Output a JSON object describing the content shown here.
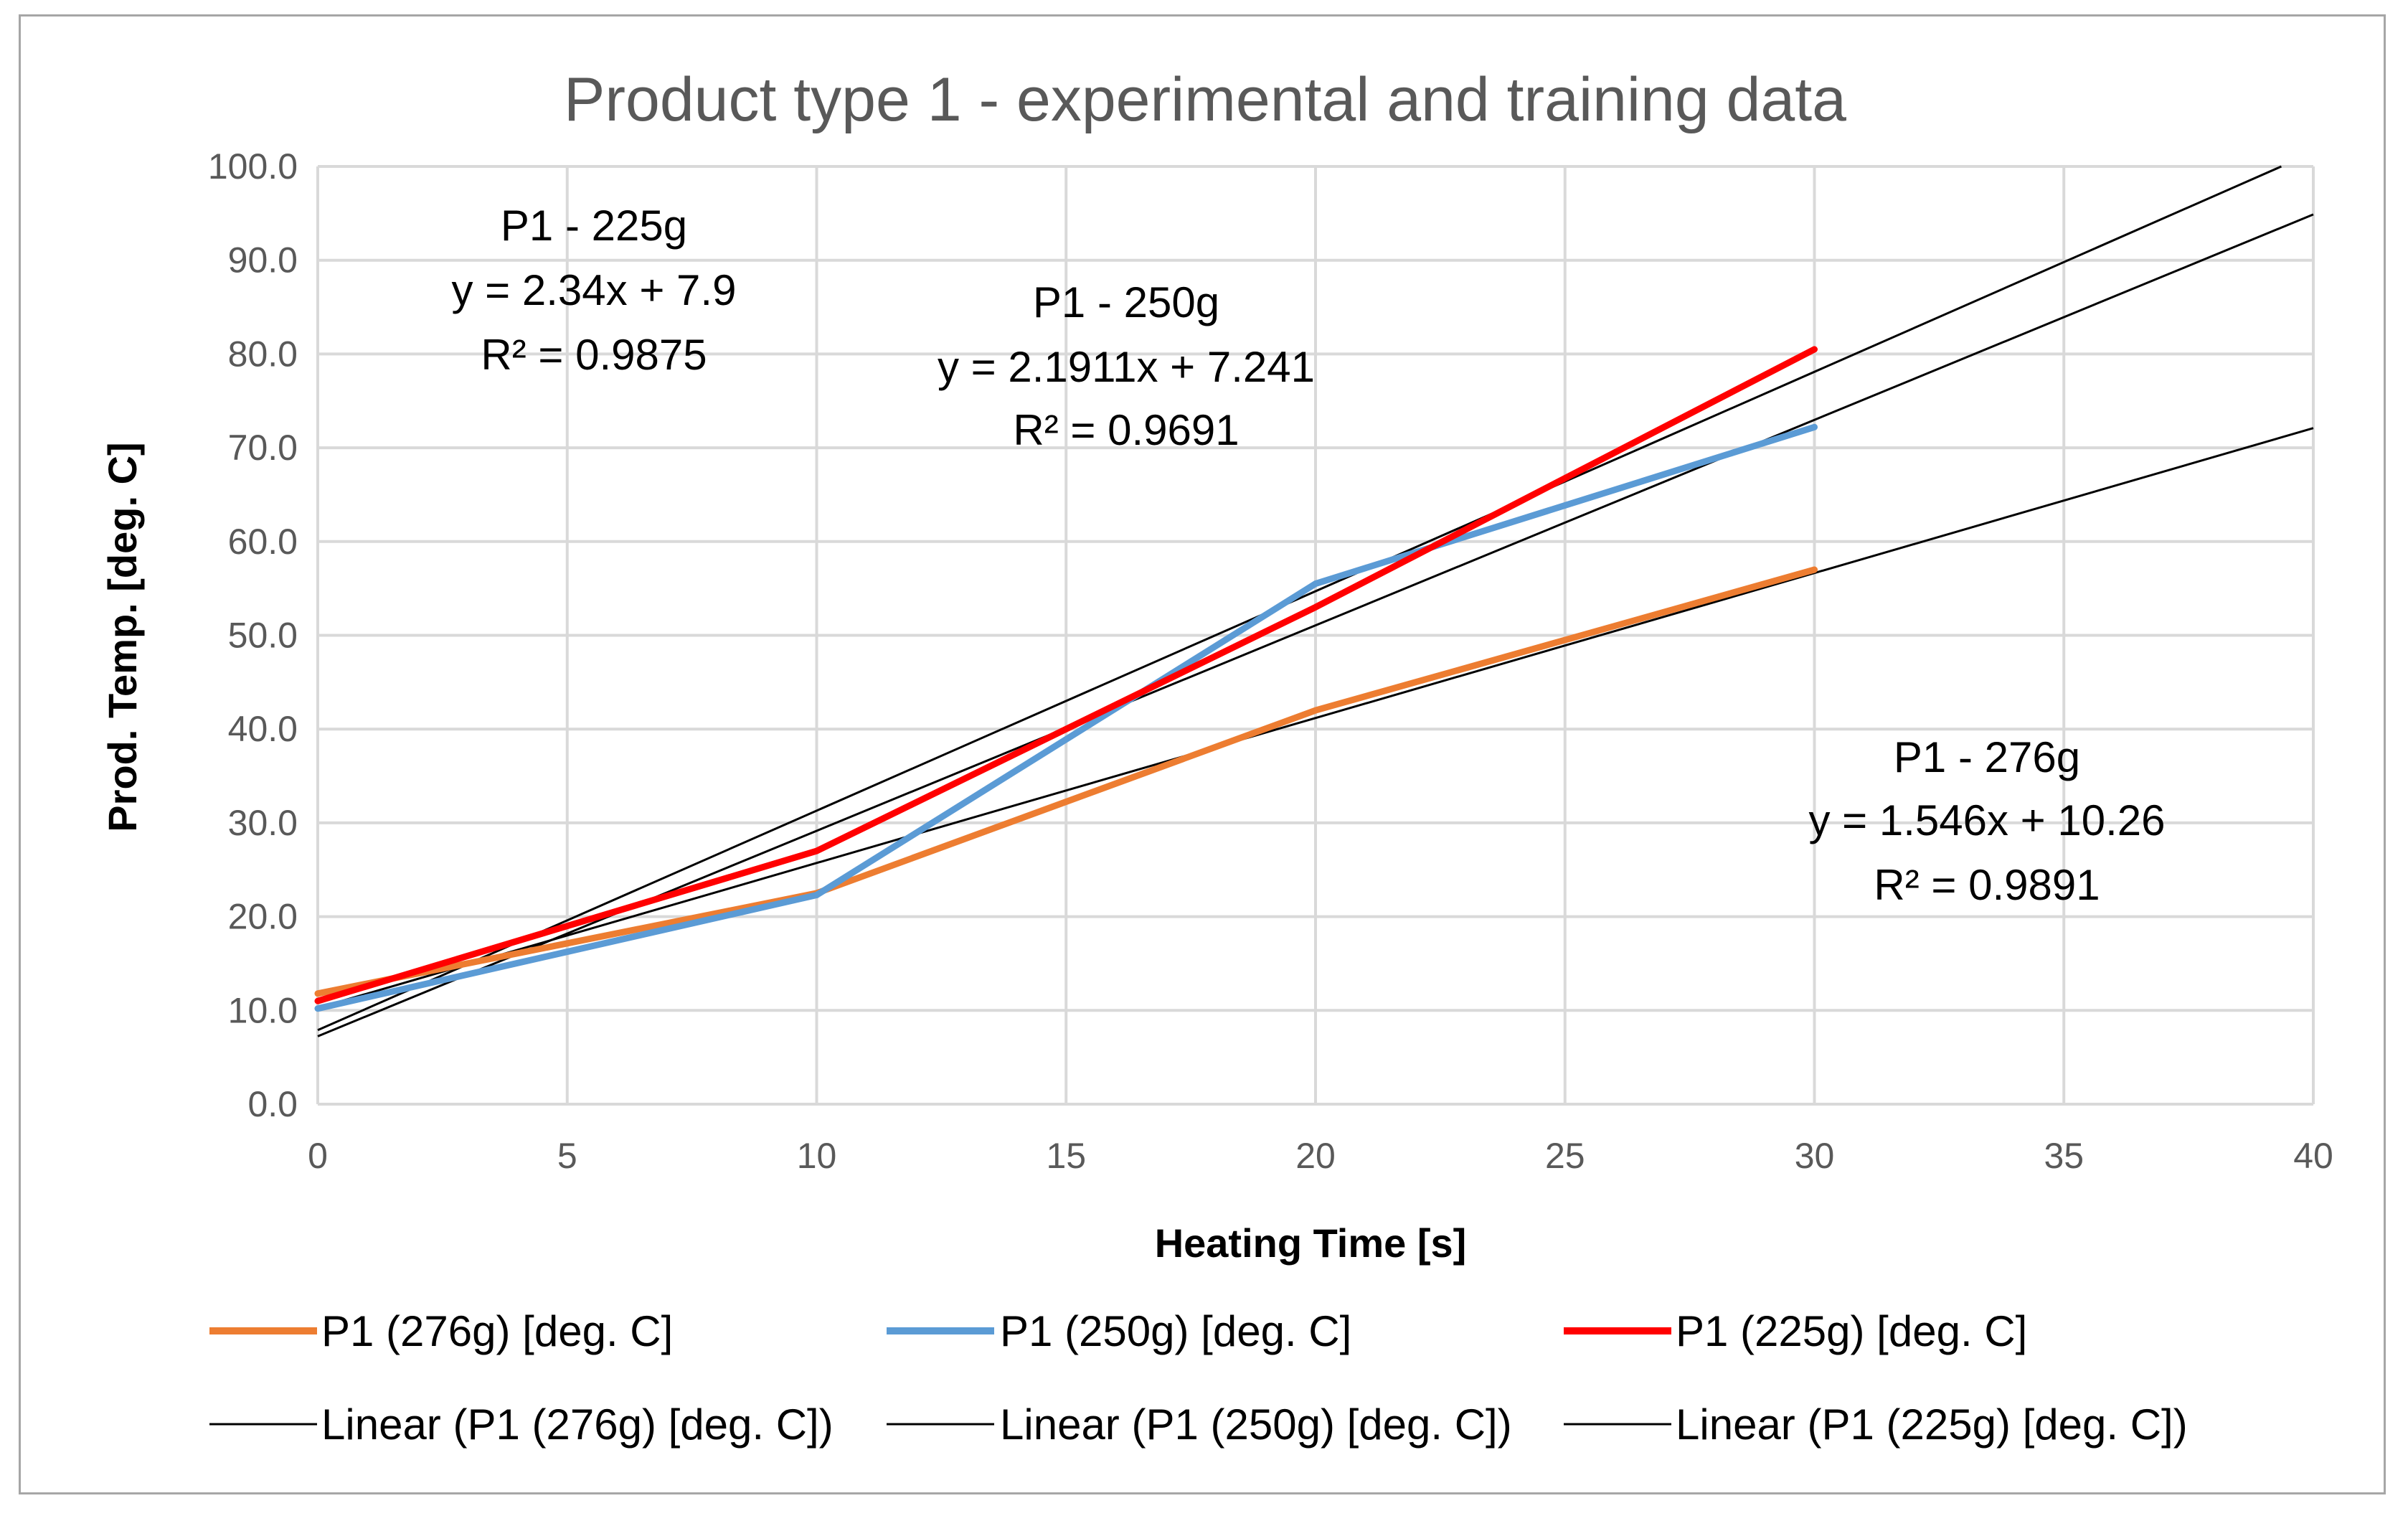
{
  "chart_data": {
    "type": "line",
    "title": "Product type 1 - experimental and training data",
    "xlabel": "Heating Time [s]",
    "ylabel": "Prod. Temp. [deg. C]",
    "xlim": [
      0,
      40
    ],
    "ylim": [
      0,
      100
    ],
    "x_ticks": [
      "0",
      "5",
      "10",
      "15",
      "20",
      "25",
      "30",
      "35",
      "40"
    ],
    "y_ticks": [
      "0.0",
      "10.0",
      "20.0",
      "30.0",
      "40.0",
      "50.0",
      "60.0",
      "70.0",
      "80.0",
      "90.0",
      "100.0"
    ],
    "grid": true,
    "x": [
      0,
      10,
      20,
      30
    ],
    "series": [
      {
        "name": "P1 (276g) [deg. C]",
        "color": "#ed7d31",
        "values": [
          11.8,
          22.5,
          42.0,
          57.0
        ]
      },
      {
        "name": "P1 (250g) [deg. C]",
        "color": "#5b9bd5",
        "values": [
          10.2,
          22.3,
          55.5,
          72.2
        ]
      },
      {
        "name": "P1 (225g) [deg. C]",
        "color": "#ff0000",
        "values": [
          11.0,
          27.0,
          53.0,
          80.5
        ]
      }
    ],
    "trendlines": [
      {
        "name": "Linear (P1 (276g) [deg. C])",
        "slope": 1.546,
        "intercept": 10.26,
        "color": "#000000"
      },
      {
        "name": "Linear (P1 (250g) [deg. C])",
        "slope": 2.1911,
        "intercept": 7.241,
        "color": "#000000"
      },
      {
        "name": "Linear (P1 (225g) [deg. C])",
        "slope": 2.34,
        "intercept": 7.9,
        "color": "#000000"
      }
    ],
    "annotations": [
      {
        "lines": [
          "P1 - 225g",
          "y = 2.34x + 7.9",
          "R² = 0.9875"
        ]
      },
      {
        "lines": [
          "P1 - 250g",
          "y = 2.1911x + 7.241",
          "R² = 0.9691"
        ]
      },
      {
        "lines": [
          "P1 - 276g",
          "y = 1.546x + 10.26",
          "R² = 0.9891"
        ]
      }
    ],
    "legend_position": "bottom"
  }
}
